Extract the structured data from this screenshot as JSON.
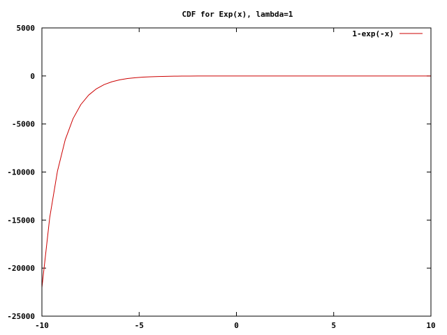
{
  "chart_data": {
    "type": "line",
    "title": "CDF for Exp(x), lambda=1",
    "xlabel": "",
    "ylabel": "",
    "xlim": [
      -10,
      10
    ],
    "ylim": [
      -25000,
      5000
    ],
    "x_ticks": [
      -10,
      -5,
      0,
      5,
      10
    ],
    "x_tick_labels": [
      "-10",
      "-5",
      "0",
      "5",
      "10"
    ],
    "y_ticks": [
      5000,
      0,
      -5000,
      -10000,
      -15000,
      -20000,
      -25000
    ],
    "y_tick_labels": [
      "5000",
      "0",
      "-5000",
      "-10000",
      "-15000",
      "-20000",
      "-25000"
    ],
    "grid": false,
    "legend_position": "top-right",
    "series": [
      {
        "name": "1-exp(-x)",
        "color": "#cc0000",
        "x": [
          -10,
          -9.6,
          -9.2,
          -8.8,
          -8.4,
          -8,
          -7.6,
          -7.2,
          -6.8,
          -6.4,
          -6,
          -5.6,
          -5.2,
          -4.8,
          -4.4,
          -4,
          -3.6,
          -3.2,
          -2.8,
          -2.4,
          -2,
          -1.6,
          -1.2,
          -0.8,
          -0.4,
          0,
          0.4,
          0.8,
          1.2,
          1.6,
          2,
          2.4,
          2.8,
          3.2,
          3.6,
          4,
          4.4,
          4.8,
          5.2,
          5.6,
          6,
          6.4,
          6.8,
          7.2,
          7.6,
          8,
          8.4,
          8.8,
          9.2,
          9.6,
          10
        ],
        "y": [
          -22025.5,
          -14763.8,
          -9896.1,
          -6633.7,
          -4446.9,
          -2980,
          -1997.2,
          -1338.4,
          -896.8,
          -600.8,
          -402.4,
          -269.4,
          -180.3,
          -120.5,
          -80.5,
          -53.6,
          -35.6,
          -23.5,
          -15.4,
          -10,
          -6.4,
          -3.95,
          -2.32,
          -1.23,
          -0.49,
          0,
          0.33,
          0.55,
          0.7,
          0.8,
          0.86,
          0.91,
          0.94,
          0.96,
          0.97,
          0.98,
          0.99,
          0.99,
          0.99,
          1,
          1,
          1,
          1,
          1,
          1,
          1,
          1,
          1,
          1,
          1,
          1
        ]
      }
    ]
  }
}
